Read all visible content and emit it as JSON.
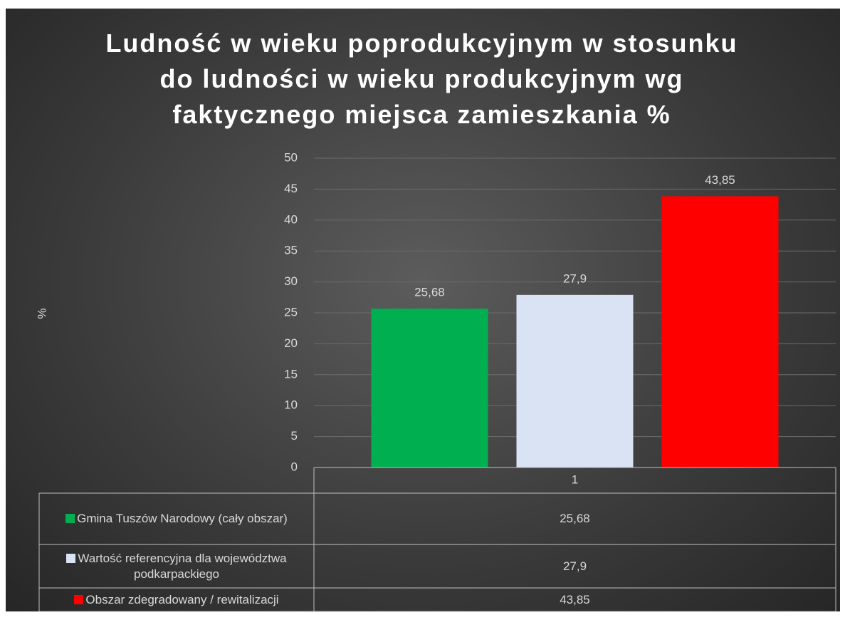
{
  "chart_data": {
    "type": "bar",
    "title": "Ludność w wieku poprodukcyjnym w stosunku do ludności w wieku produkcyjnym wg faktycznego miejsca zamieszkania %",
    "y_label": "%",
    "categories": [
      "1"
    ],
    "series": [
      {
        "name": "Gmina Tuszów Narodowy (cały obszar)",
        "color": "#00b050",
        "values": [
          25.68
        ],
        "value_labels": [
          "25,68"
        ]
      },
      {
        "name": "Wartość referencyjna dla województwa podkarpackiego",
        "color": "#dae3f3",
        "values": [
          27.9
        ],
        "value_labels": [
          "27,9"
        ]
      },
      {
        "name": "Obszar zdegradowany / rewitalizacji",
        "color": "#ff0000",
        "values": [
          43.85
        ],
        "value_labels": [
          "43,85"
        ]
      }
    ],
    "ylim": [
      0,
      50
    ],
    "yticks": [
      0,
      5,
      10,
      15,
      20,
      25,
      30,
      35,
      40,
      45,
      50
    ],
    "grid": true,
    "data_table": true
  }
}
